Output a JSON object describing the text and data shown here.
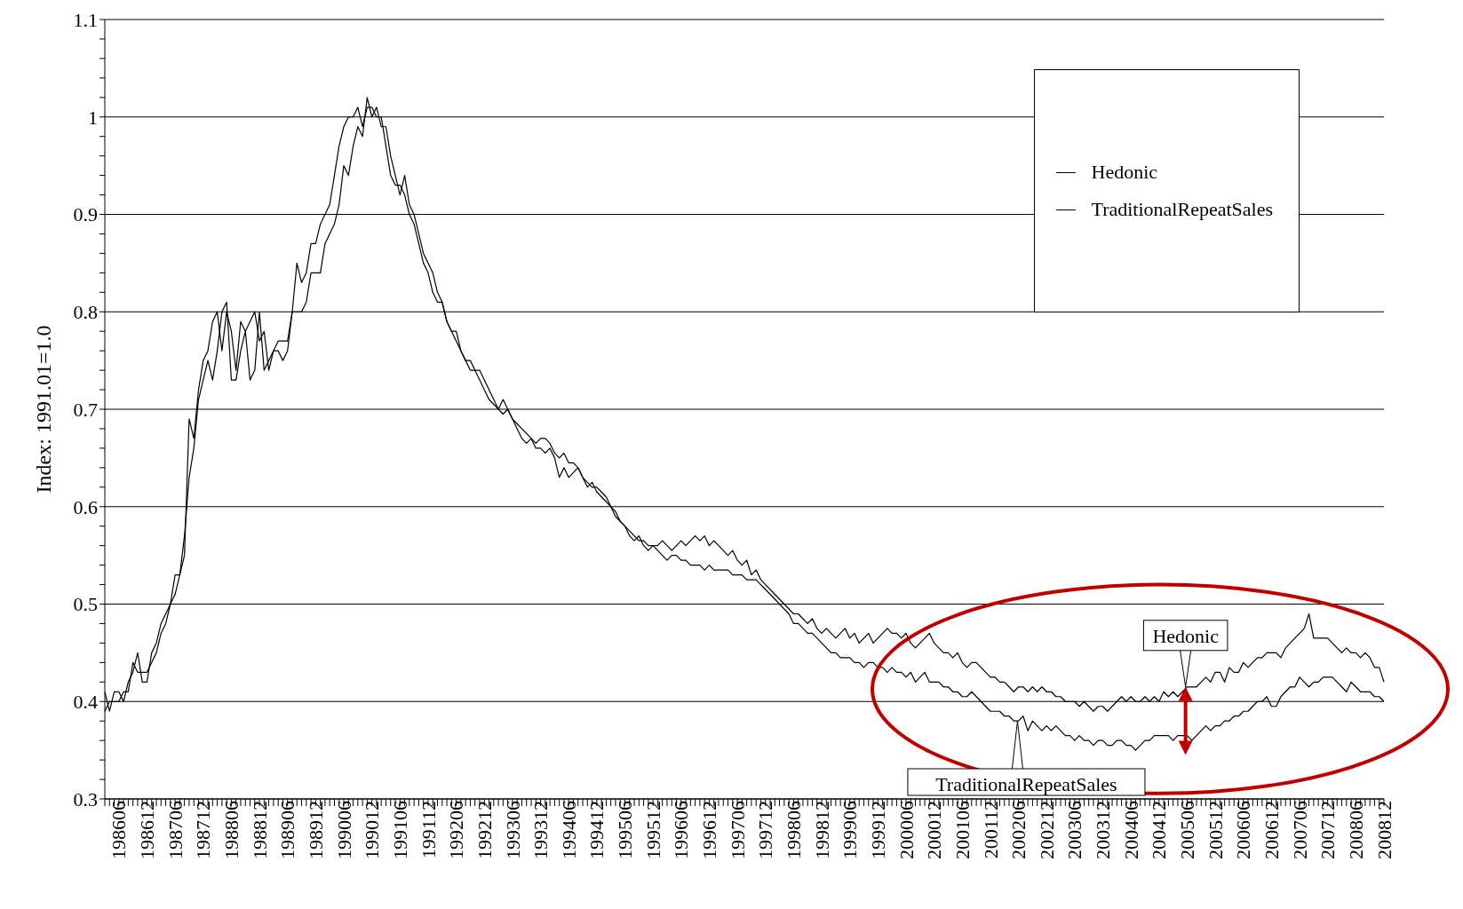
{
  "chart_data": {
    "type": "line",
    "ylabel": "Index: 1991.01=1.0",
    "categories": [
      null,
      null,
      null,
      "198606",
      null,
      null,
      null,
      null,
      null,
      "198612",
      null,
      null,
      null,
      null,
      null,
      "198706",
      null,
      null,
      null,
      null,
      null,
      "198712",
      null,
      null,
      null,
      null,
      null,
      "198806",
      null,
      null,
      null,
      null,
      null,
      "198812",
      null,
      null,
      null,
      null,
      null,
      "198906",
      null,
      null,
      null,
      null,
      null,
      "198912",
      null,
      null,
      null,
      null,
      null,
      "199006",
      null,
      null,
      null,
      null,
      null,
      "199012",
      null,
      null,
      null,
      null,
      null,
      "199106",
      null,
      null,
      null,
      null,
      null,
      "199112",
      null,
      null,
      null,
      null,
      null,
      "199206",
      null,
      null,
      null,
      null,
      null,
      "199212",
      null,
      null,
      null,
      null,
      null,
      "199306",
      null,
      null,
      null,
      null,
      null,
      "199312",
      null,
      null,
      null,
      null,
      null,
      "199406",
      null,
      null,
      null,
      null,
      null,
      "199412",
      null,
      null,
      null,
      null,
      null,
      "199506",
      null,
      null,
      null,
      null,
      null,
      "199512",
      null,
      null,
      null,
      null,
      null,
      "199606",
      null,
      null,
      null,
      null,
      null,
      "199612",
      null,
      null,
      null,
      null,
      null,
      "199706",
      null,
      null,
      null,
      null,
      null,
      "199712",
      null,
      null,
      null,
      null,
      null,
      "199806",
      null,
      null,
      null,
      null,
      null,
      "199812",
      null,
      null,
      null,
      null,
      null,
      "199906",
      null,
      null,
      null,
      null,
      null,
      "199912",
      null,
      null,
      null,
      null,
      null,
      "200006",
      null,
      null,
      null,
      null,
      null,
      "200012",
      null,
      null,
      null,
      null,
      null,
      "200106",
      null,
      null,
      null,
      null,
      null,
      "200112",
      null,
      null,
      null,
      null,
      null,
      "200206",
      null,
      null,
      null,
      null,
      null,
      "200212",
      null,
      null,
      null,
      null,
      null,
      "200306",
      null,
      null,
      null,
      null,
      null,
      "200312",
      null,
      null,
      null,
      null,
      null,
      "200406",
      null,
      null,
      null,
      null,
      null,
      "200412",
      null,
      null,
      null,
      null,
      null,
      "200506",
      null,
      null,
      null,
      null,
      null,
      "200512",
      null,
      null,
      null,
      null,
      null,
      "200606",
      null,
      null,
      null,
      null,
      null,
      "200612",
      null,
      null,
      null,
      null,
      null,
      "200706",
      null,
      null,
      null,
      null,
      null,
      "200712",
      null,
      null,
      null,
      null,
      null,
      "200806",
      null,
      null,
      null,
      null,
      null,
      "200812"
    ],
    "series": [
      {
        "name": "Hedonic",
        "color": "#000000",
        "values": [
          0.41,
          0.39,
          0.41,
          0.41,
          0.4,
          0.42,
          0.43,
          0.45,
          0.42,
          0.42,
          0.45,
          0.46,
          0.48,
          0.49,
          0.5,
          0.53,
          0.53,
          0.55,
          0.69,
          0.67,
          0.72,
          0.75,
          0.76,
          0.79,
          0.8,
          0.76,
          0.8,
          0.78,
          0.74,
          0.79,
          0.78,
          0.79,
          0.8,
          0.77,
          0.78,
          0.74,
          0.76,
          0.77,
          0.77,
          0.77,
          0.8,
          0.85,
          0.83,
          0.84,
          0.87,
          0.87,
          0.89,
          0.9,
          0.91,
          0.94,
          0.97,
          0.99,
          1.0,
          1.0,
          1.01,
          0.99,
          1.01,
          1.01,
          1.0,
          1.0,
          0.97,
          0.94,
          0.93,
          0.93,
          0.92,
          0.9,
          0.89,
          0.87,
          0.85,
          0.84,
          0.82,
          0.81,
          0.81,
          0.79,
          0.78,
          0.77,
          0.76,
          0.75,
          0.74,
          0.74,
          0.73,
          0.72,
          0.71,
          0.705,
          0.7,
          0.695,
          0.7,
          0.69,
          0.68,
          0.67,
          0.665,
          0.67,
          0.66,
          0.66,
          0.655,
          0.66,
          0.65,
          0.63,
          0.64,
          0.63,
          0.635,
          0.64,
          0.63,
          0.62,
          0.625,
          0.615,
          0.61,
          0.605,
          0.6,
          0.59,
          0.585,
          0.58,
          0.57,
          0.565,
          0.57,
          0.56,
          0.555,
          0.56,
          0.56,
          0.565,
          0.56,
          0.555,
          0.56,
          0.565,
          0.56,
          0.565,
          0.57,
          0.565,
          0.57,
          0.56,
          0.565,
          0.56,
          0.555,
          0.55,
          0.555,
          0.545,
          0.54,
          0.545,
          0.53,
          0.535,
          0.525,
          0.52,
          0.515,
          0.51,
          0.505,
          0.5,
          0.495,
          0.49,
          0.49,
          0.485,
          0.48,
          0.485,
          0.475,
          0.47,
          0.475,
          0.47,
          0.465,
          0.47,
          0.475,
          0.465,
          0.47,
          0.46,
          0.465,
          0.47,
          0.46,
          0.465,
          0.47,
          0.475,
          0.47,
          0.47,
          0.465,
          0.47,
          0.46,
          0.455,
          0.46,
          0.465,
          0.47,
          0.46,
          0.455,
          0.45,
          0.45,
          0.445,
          0.45,
          0.44,
          0.435,
          0.44,
          0.44,
          0.435,
          0.43,
          0.425,
          0.425,
          0.42,
          0.42,
          0.415,
          0.41,
          0.415,
          0.415,
          0.41,
          0.415,
          0.41,
          0.415,
          0.41,
          0.41,
          0.405,
          0.405,
          0.4,
          0.4,
          0.4,
          0.395,
          0.4,
          0.395,
          0.39,
          0.395,
          0.395,
          0.39,
          0.395,
          0.4,
          0.405,
          0.4,
          0.405,
          0.4,
          0.4,
          0.405,
          0.4,
          0.405,
          0.4,
          0.41,
          0.405,
          0.41,
          0.405,
          0.41,
          0.415,
          0.415,
          0.415,
          0.42,
          0.425,
          0.42,
          0.43,
          0.43,
          0.42,
          0.435,
          0.43,
          0.43,
          0.44,
          0.435,
          0.44,
          0.445,
          0.445,
          0.45,
          0.45,
          0.45,
          0.445,
          0.455,
          0.46,
          0.465,
          0.47,
          0.475,
          0.49,
          0.465,
          0.465,
          0.465,
          0.465,
          0.46,
          0.455,
          0.45,
          0.455,
          0.45,
          0.45,
          0.445,
          0.45,
          0.445,
          0.435,
          0.435,
          0.42
        ]
      },
      {
        "name": "TraditionalRepeatSales",
        "color": "#000000",
        "values": [
          0.39,
          0.4,
          0.4,
          0.4,
          0.41,
          0.41,
          0.44,
          0.43,
          0.43,
          0.43,
          0.44,
          0.45,
          0.47,
          0.48,
          0.5,
          0.51,
          0.53,
          0.57,
          0.63,
          0.66,
          0.71,
          0.73,
          0.75,
          0.73,
          0.76,
          0.8,
          0.81,
          0.73,
          0.73,
          0.76,
          0.78,
          0.73,
          0.74,
          0.8,
          0.74,
          0.75,
          0.76,
          0.76,
          0.75,
          0.76,
          0.8,
          0.8,
          0.8,
          0.81,
          0.84,
          0.84,
          0.84,
          0.87,
          0.88,
          0.89,
          0.91,
          0.95,
          0.94,
          0.97,
          0.99,
          0.98,
          1.02,
          1.0,
          1.01,
          0.99,
          0.99,
          0.96,
          0.94,
          0.92,
          0.94,
          0.91,
          0.9,
          0.88,
          0.86,
          0.85,
          0.84,
          0.82,
          0.81,
          0.79,
          0.78,
          0.78,
          0.76,
          0.75,
          0.75,
          0.74,
          0.74,
          0.73,
          0.72,
          0.71,
          0.7,
          0.71,
          0.7,
          0.69,
          0.685,
          0.68,
          0.675,
          0.67,
          0.665,
          0.67,
          0.67,
          0.665,
          0.655,
          0.65,
          0.655,
          0.645,
          0.645,
          0.64,
          0.63,
          0.625,
          0.62,
          0.62,
          0.615,
          0.61,
          0.6,
          0.595,
          0.585,
          0.58,
          0.575,
          0.57,
          0.565,
          0.565,
          0.56,
          0.56,
          0.555,
          0.55,
          0.545,
          0.55,
          0.55,
          0.545,
          0.545,
          0.54,
          0.54,
          0.54,
          0.535,
          0.54,
          0.535,
          0.535,
          0.535,
          0.535,
          0.53,
          0.53,
          0.53,
          0.525,
          0.525,
          0.525,
          0.52,
          0.515,
          0.51,
          0.505,
          0.5,
          0.495,
          0.49,
          0.48,
          0.48,
          0.475,
          0.47,
          0.47,
          0.465,
          0.46,
          0.455,
          0.45,
          0.45,
          0.445,
          0.445,
          0.445,
          0.44,
          0.44,
          0.435,
          0.44,
          0.44,
          0.435,
          0.435,
          0.43,
          0.435,
          0.43,
          0.43,
          0.425,
          0.43,
          0.42,
          0.425,
          0.43,
          0.42,
          0.42,
          0.42,
          0.415,
          0.415,
          0.41,
          0.41,
          0.405,
          0.405,
          0.41,
          0.405,
          0.4,
          0.395,
          0.39,
          0.39,
          0.39,
          0.385,
          0.385,
          0.38,
          0.38,
          0.385,
          0.37,
          0.38,
          0.375,
          0.37,
          0.375,
          0.37,
          0.375,
          0.37,
          0.365,
          0.365,
          0.36,
          0.365,
          0.36,
          0.36,
          0.355,
          0.36,
          0.36,
          0.355,
          0.355,
          0.36,
          0.36,
          0.355,
          0.355,
          0.35,
          0.355,
          0.36,
          0.36,
          0.365,
          0.365,
          0.365,
          0.365,
          0.36,
          0.365,
          0.365,
          0.365,
          0.36,
          0.365,
          0.37,
          0.375,
          0.37,
          0.375,
          0.375,
          0.38,
          0.38,
          0.385,
          0.385,
          0.39,
          0.39,
          0.395,
          0.4,
          0.4,
          0.405,
          0.395,
          0.395,
          0.405,
          0.41,
          0.415,
          0.415,
          0.425,
          0.42,
          0.415,
          0.42,
          0.42,
          0.425,
          0.425,
          0.425,
          0.42,
          0.415,
          0.41,
          0.42,
          0.415,
          0.41,
          0.41,
          0.41,
          0.405,
          0.405,
          0.4
        ]
      }
    ],
    "ylim": [
      0.3,
      1.1
    ],
    "yticks": [
      0.3,
      {
        "value": 0.32,
        "label": null
      },
      {
        "value": 0.34,
        "label": null
      },
      {
        "value": 0.36,
        "label": null
      },
      {
        "value": 0.38,
        "label": null
      },
      0.4,
      {
        "value": 0.42,
        "label": null
      },
      {
        "value": 0.44,
        "label": null
      },
      {
        "value": 0.46,
        "label": null
      },
      {
        "value": 0.48,
        "label": null
      },
      0.5,
      {
        "value": 0.52,
        "label": null
      },
      {
        "value": 0.54,
        "label": null
      },
      {
        "value": 0.56,
        "label": null
      },
      {
        "value": 0.58,
        "label": null
      },
      0.6,
      {
        "value": 0.62,
        "label": null
      },
      {
        "value": 0.64,
        "label": null
      },
      {
        "value": 0.66,
        "label": null
      },
      {
        "value": 0.68,
        "label": null
      },
      0.7,
      {
        "value": 0.72,
        "label": null
      },
      {
        "value": 0.74,
        "label": null
      },
      {
        "value": 0.76,
        "label": null
      },
      {
        "value": 0.78,
        "label": null
      },
      0.8,
      {
        "value": 0.82,
        "label": null
      },
      {
        "value": 0.84,
        "label": null
      },
      {
        "value": 0.86,
        "label": null
      },
      {
        "value": 0.88,
        "label": null
      },
      0.9,
      {
        "value": 0.92,
        "label": null
      },
      {
        "value": 0.94,
        "label": null
      },
      {
        "value": 0.96,
        "label": null
      },
      {
        "value": 0.98,
        "label": null
      },
      1,
      {
        "value": 1.02,
        "label": null
      },
      {
        "value": 1.04,
        "label": null
      },
      {
        "value": 1.06,
        "label": null
      },
      {
        "value": 1.08,
        "label": null
      },
      1.1
    ],
    "grid": "y",
    "legend": "top right",
    "annotations": [
      {
        "text": "Hedonic",
        "x": "200506",
        "y": 0.415
      },
      {
        "text": "TraditionalRepeatSales",
        "x": "200206",
        "y": 0.38
      }
    ]
  }
}
